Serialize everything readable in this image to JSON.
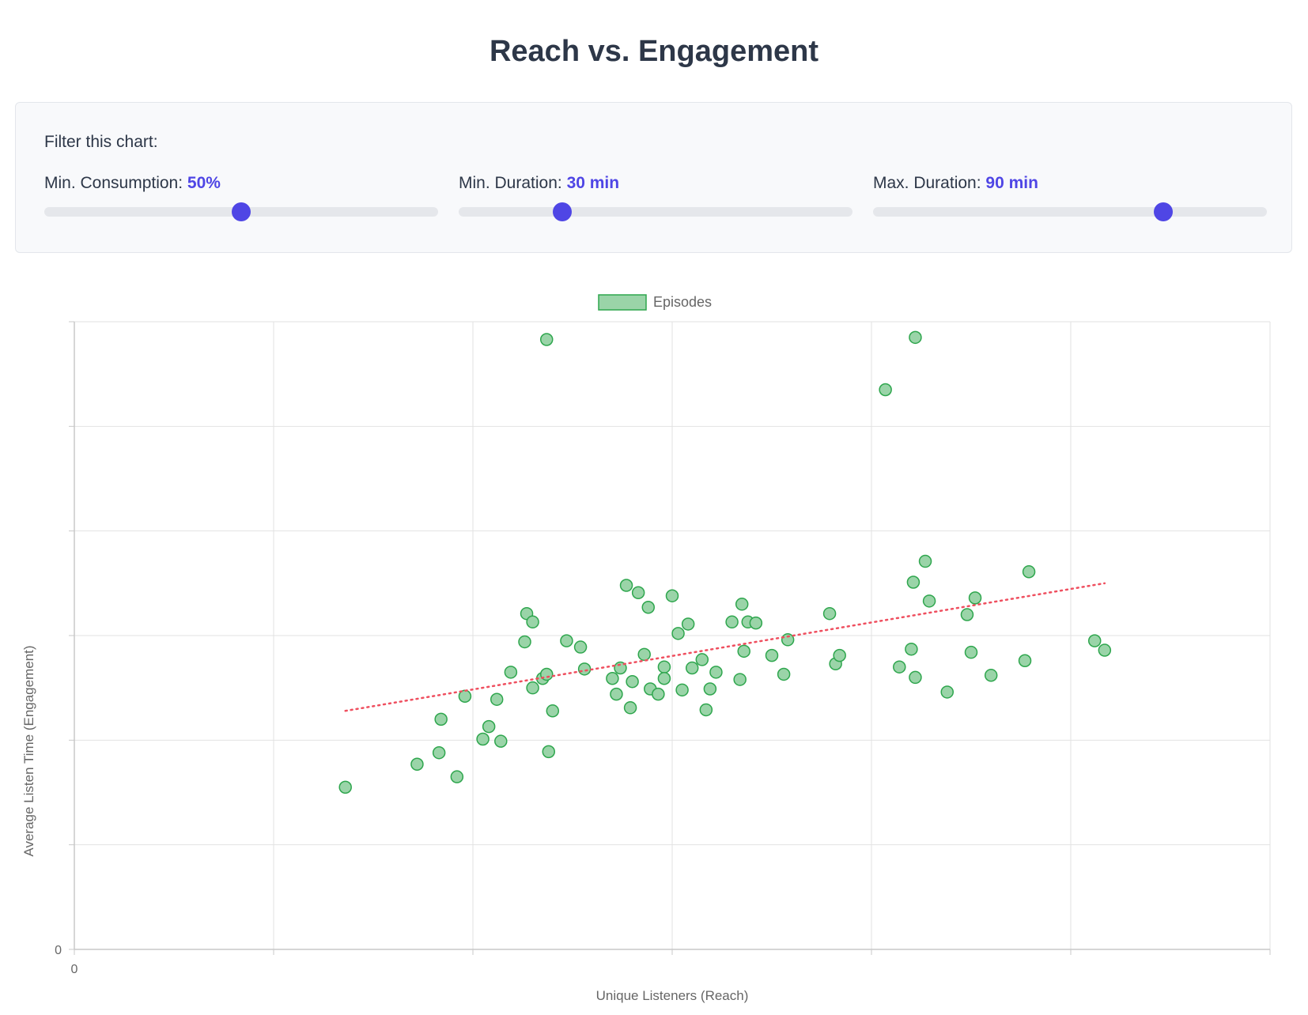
{
  "title": "Reach vs. Engagement",
  "filters": {
    "heading": "Filter this chart:",
    "sliders": [
      {
        "label": "Min. Consumption:",
        "value_text": "50%",
        "fraction": 0.5
      },
      {
        "label": "Min. Duration:",
        "value_text": "30 min",
        "fraction": 0.263
      },
      {
        "label": "Max. Duration:",
        "value_text": "90 min",
        "fraction": 0.737
      }
    ]
  },
  "colors": {
    "accent": "#4f46e5",
    "point_fill": "#9ad4a8",
    "point_stroke": "#2ea64d",
    "trend": "#ef4f5f",
    "grid": "#e2e2e2",
    "axis": "#c8c8c8"
  },
  "chart_data": {
    "type": "scatter",
    "xlabel": "Unique Listeners (Reach)",
    "ylabel": "Average Listen Time (Engagement)",
    "xlim": [
      0,
      6
    ],
    "ylim": [
      0,
      6
    ],
    "x_tick_labels": [
      "0",
      "",
      "",
      "",
      "",
      "",
      ""
    ],
    "y_tick_labels": [
      "0",
      "",
      "",
      "",
      "",
      "",
      ""
    ],
    "grid": true,
    "legend_position": "top",
    "series": [
      {
        "name": "Episodes",
        "points": [
          [
            1.36,
            1.55
          ],
          [
            1.72,
            1.77
          ],
          [
            1.83,
            1.88
          ],
          [
            1.84,
            2.2
          ],
          [
            1.92,
            1.65
          ],
          [
            1.96,
            2.42
          ],
          [
            2.05,
            2.01
          ],
          [
            2.08,
            2.13
          ],
          [
            2.12,
            2.39
          ],
          [
            2.14,
            1.99
          ],
          [
            2.19,
            2.65
          ],
          [
            2.26,
            2.94
          ],
          [
            2.27,
            3.21
          ],
          [
            2.3,
            3.13
          ],
          [
            2.3,
            2.5
          ],
          [
            2.35,
            2.59
          ],
          [
            2.37,
            2.63
          ],
          [
            2.37,
            5.83
          ],
          [
            2.38,
            1.89
          ],
          [
            2.4,
            2.28
          ],
          [
            2.47,
            2.95
          ],
          [
            2.54,
            2.89
          ],
          [
            2.56,
            2.68
          ],
          [
            2.7,
            2.59
          ],
          [
            2.72,
            2.44
          ],
          [
            2.74,
            2.69
          ],
          [
            2.77,
            3.48
          ],
          [
            2.79,
            2.31
          ],
          [
            2.8,
            2.56
          ],
          [
            2.83,
            3.41
          ],
          [
            2.86,
            2.82
          ],
          [
            2.88,
            3.27
          ],
          [
            2.89,
            2.49
          ],
          [
            2.93,
            2.44
          ],
          [
            2.96,
            2.7
          ],
          [
            2.96,
            2.59
          ],
          [
            3.0,
            3.38
          ],
          [
            3.03,
            3.02
          ],
          [
            3.05,
            2.48
          ],
          [
            3.08,
            3.11
          ],
          [
            3.1,
            2.69
          ],
          [
            3.15,
            2.77
          ],
          [
            3.17,
            2.29
          ],
          [
            3.19,
            2.49
          ],
          [
            3.22,
            2.65
          ],
          [
            3.3,
            3.13
          ],
          [
            3.34,
            2.58
          ],
          [
            3.35,
            3.3
          ],
          [
            3.36,
            2.85
          ],
          [
            3.38,
            3.13
          ],
          [
            3.42,
            3.12
          ],
          [
            3.5,
            2.81
          ],
          [
            3.56,
            2.63
          ],
          [
            3.58,
            2.96
          ],
          [
            3.79,
            3.21
          ],
          [
            3.82,
            2.73
          ],
          [
            3.84,
            2.81
          ],
          [
            4.07,
            5.35
          ],
          [
            4.14,
            2.7
          ],
          [
            4.2,
            2.87
          ],
          [
            4.22,
            2.6
          ],
          [
            4.21,
            3.51
          ],
          [
            4.22,
            5.85
          ],
          [
            4.27,
            3.71
          ],
          [
            4.29,
            3.33
          ],
          [
            4.38,
            2.46
          ],
          [
            4.48,
            3.2
          ],
          [
            4.5,
            2.84
          ],
          [
            4.52,
            3.36
          ],
          [
            4.6,
            2.62
          ],
          [
            4.77,
            2.76
          ],
          [
            4.79,
            3.61
          ],
          [
            5.12,
            2.95
          ],
          [
            5.17,
            2.86
          ]
        ]
      }
    ],
    "trendline": {
      "from": [
        1.36,
        2.28
      ],
      "to": [
        5.17,
        3.5
      ]
    }
  }
}
